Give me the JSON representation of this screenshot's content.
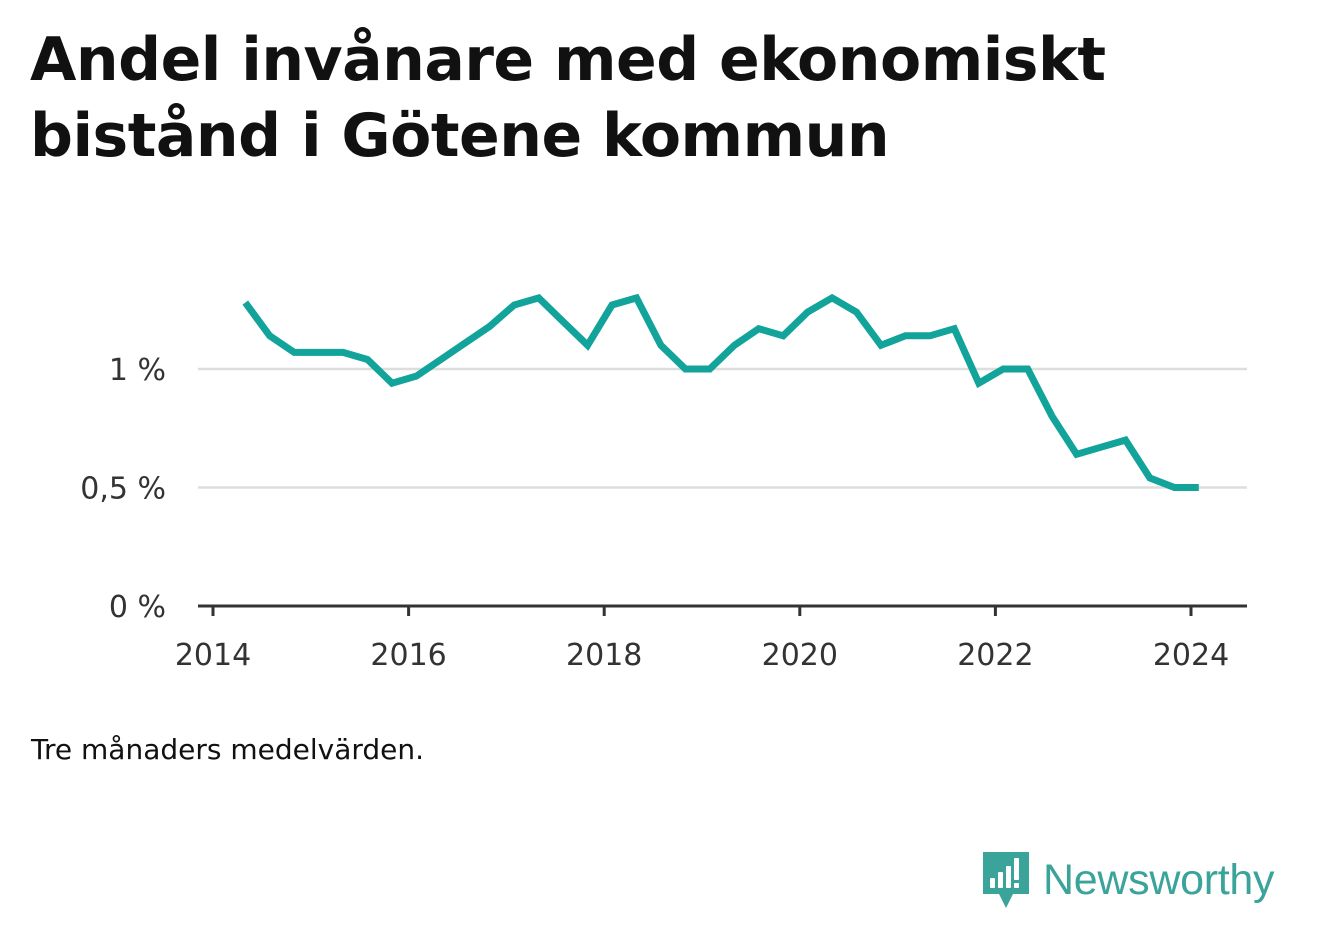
{
  "title": "Andel invånare med ekonomiskt bistånd i Götene kommun",
  "note": "Tre månaders medelvärden.",
  "brand": {
    "name": "Newsworthy",
    "icon": "bar-chart-speech-bubble-icon",
    "color": "#3aa39a"
  },
  "colors": {
    "line": "#12a39a",
    "grid": "#dddddd",
    "axis": "#333333"
  },
  "chart_data": {
    "type": "line",
    "title": "Andel invånare med ekonomiskt bistånd i Götene kommun",
    "xlabel": "",
    "ylabel": "",
    "xlim": [
      2014,
      2024.6
    ],
    "ylim": [
      0,
      1.5
    ],
    "x_ticks": [
      {
        "value": 2014,
        "label": "2014"
      },
      {
        "value": 2016,
        "label": "2016"
      },
      {
        "value": 2018,
        "label": "2018"
      },
      {
        "value": 2020,
        "label": "2020"
      },
      {
        "value": 2022,
        "label": "2022"
      },
      {
        "value": 2024,
        "label": "2024"
      }
    ],
    "y_ticks": [
      {
        "value": 0,
        "label": "0 %"
      },
      {
        "value": 0.5,
        "label": "0,5 %"
      },
      {
        "value": 1,
        "label": "1 %"
      }
    ],
    "grid": true,
    "series": [
      {
        "x": [
          2014.33,
          2014.58,
          2014.83,
          2015.08,
          2015.33,
          2015.58,
          2015.83,
          2016.08,
          2016.33,
          2016.58,
          2016.83,
          2017.08,
          2017.33,
          2017.58,
          2017.83,
          2018.08,
          2018.33,
          2018.58,
          2018.83,
          2019.08,
          2019.33,
          2019.58,
          2019.83,
          2020.08,
          2020.33,
          2020.58,
          2020.83,
          2021.08,
          2021.33,
          2021.58,
          2021.83,
          2022.08,
          2022.33,
          2022.58,
          2022.83,
          2023.08,
          2023.33,
          2023.58,
          2023.83,
          2024.08
        ],
        "values": [
          1.28,
          1.14,
          1.07,
          1.07,
          1.07,
          1.04,
          0.94,
          0.97,
          1.04,
          1.11,
          1.18,
          1.27,
          1.3,
          1.2,
          1.1,
          1.27,
          1.3,
          1.1,
          1.0,
          1.0,
          1.1,
          1.17,
          1.14,
          1.24,
          1.3,
          1.24,
          1.1,
          1.14,
          1.14,
          1.17,
          0.94,
          1.0,
          1.0,
          0.8,
          0.64,
          0.67,
          0.7,
          0.54,
          0.5,
          0.5
        ]
      }
    ]
  }
}
